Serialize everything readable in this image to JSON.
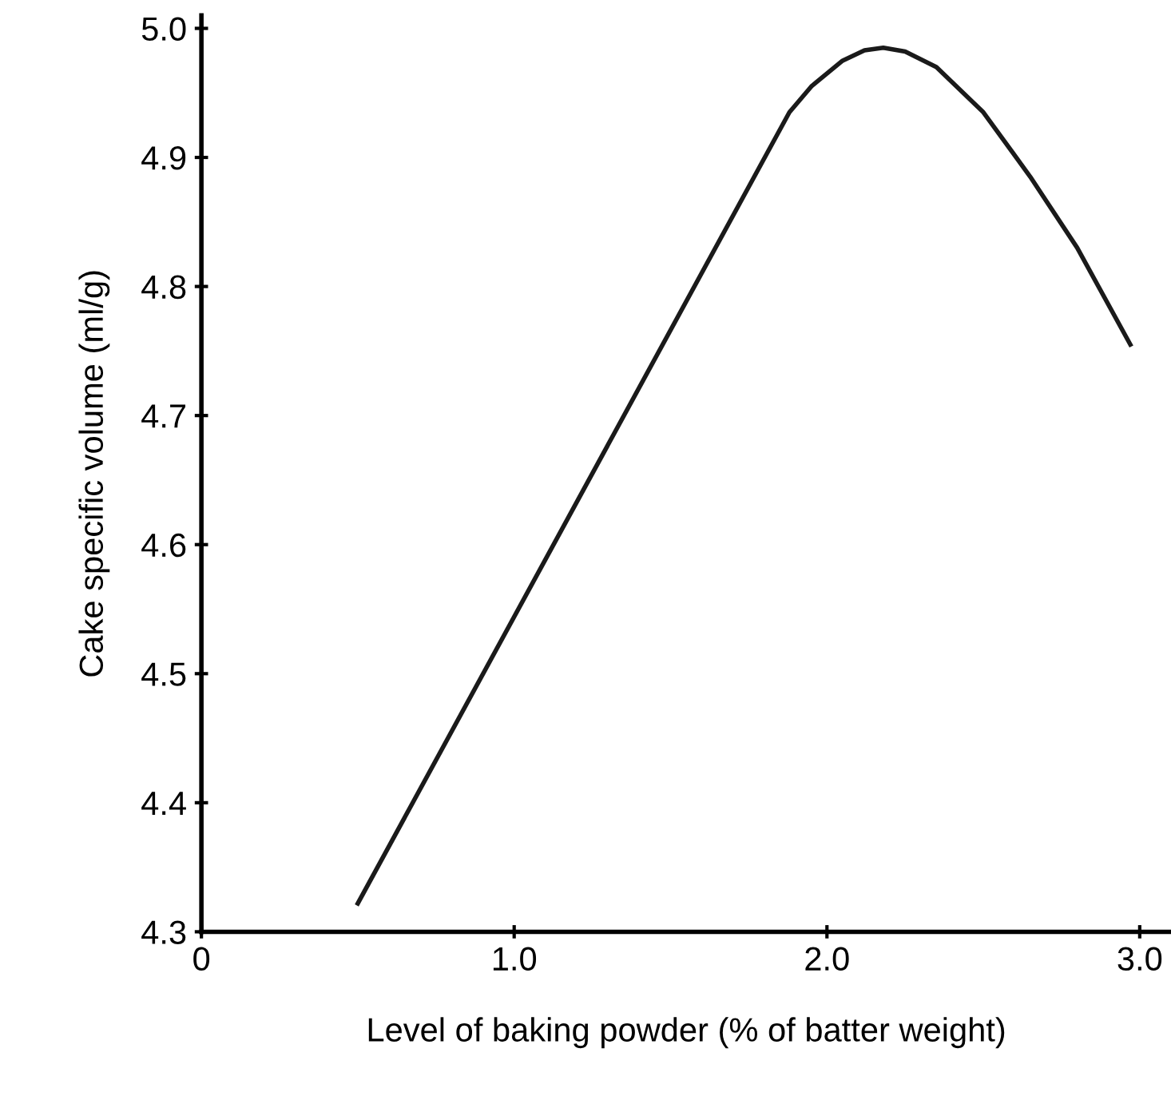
{
  "chart_data": {
    "type": "line",
    "xlabel": "Level of baking powder (% of batter weight)",
    "ylabel": "Cake specific volume (ml/g)",
    "series": [
      {
        "color": "#1a1a1a",
        "x": [
          0.5,
          1.88,
          1.95,
          2.05,
          2.12,
          2.18,
          2.25,
          2.35,
          2.5,
          2.65,
          2.8,
          2.97
        ],
        "values": [
          4.322,
          4.935,
          4.955,
          4.975,
          4.983,
          4.985,
          4.982,
          4.97,
          4.935,
          4.885,
          4.83,
          4.755
        ]
      }
    ],
    "xlim": [
      0,
      3.1
    ],
    "ylim": [
      4.3,
      5.01
    ],
    "xticks": [
      {
        "value": 0,
        "label": "0"
      },
      {
        "value": 1,
        "label": "1.0"
      },
      {
        "value": 2,
        "label": "2.0"
      },
      {
        "value": 3,
        "label": "3.0"
      }
    ],
    "yticks": [
      {
        "value": 4.3,
        "label": "4.3"
      },
      {
        "value": 4.4,
        "label": "4.4"
      },
      {
        "value": 4.5,
        "label": "4.5"
      },
      {
        "value": 4.6,
        "label": "4.6"
      },
      {
        "value": 4.7,
        "label": "4.7"
      },
      {
        "value": 4.8,
        "label": "4.8"
      },
      {
        "value": 4.9,
        "label": "4.9"
      },
      {
        "value": 5.0,
        "label": "5.0"
      }
    ],
    "grid": false,
    "legend": false,
    "marker": "none",
    "line_style": "solid"
  }
}
